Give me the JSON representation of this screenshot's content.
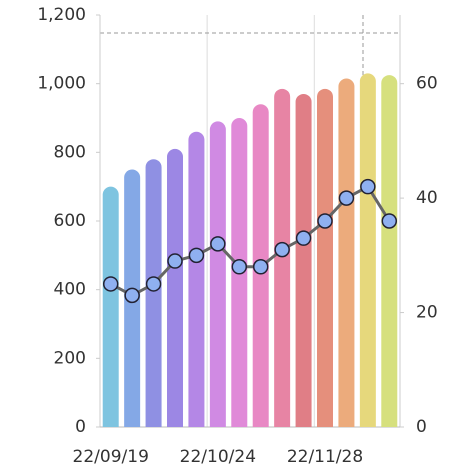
{
  "chart_data": {
    "type": "bar-line",
    "categories": [
      "22/09/19",
      null,
      null,
      null,
      null,
      "22/10/24",
      null,
      null,
      null,
      null,
      "22/11/28",
      null,
      null,
      null
    ],
    "series": [
      {
        "type": "bar",
        "axis": "y",
        "colors": [
          "#7ec4e0",
          "#84a8e6",
          "#8f90e3",
          "#9c87e4",
          "#b487e6",
          "#d08ae3",
          "#e08ad8",
          "#e888c4",
          "#e784a4",
          "#e07e86",
          "#e58f7c",
          "#ecab7c",
          "#e6d87c",
          "#d6e07e"
        ],
        "values": [
          700,
          750,
          780,
          810,
          860,
          890,
          900,
          940,
          985,
          970,
          985,
          1015,
          1030,
          1025
        ]
      },
      {
        "type": "line",
        "axis": "y2",
        "color": "#666666",
        "marker_color": "#8fb0f0",
        "values": [
          25,
          23,
          25,
          29,
          30,
          32,
          28,
          28,
          31,
          33,
          36,
          40,
          42,
          36
        ]
      }
    ],
    "ylim": [
      0,
      1200
    ],
    "yticks": [
      0,
      200,
      400,
      600,
      800,
      {
        "value": 1000,
        "label": "1,000"
      },
      {
        "value": 1200,
        "label": "1,200"
      }
    ],
    "y2lim": [
      0,
      72
    ],
    "y2ticks": [
      0,
      20,
      40,
      60
    ]
  }
}
